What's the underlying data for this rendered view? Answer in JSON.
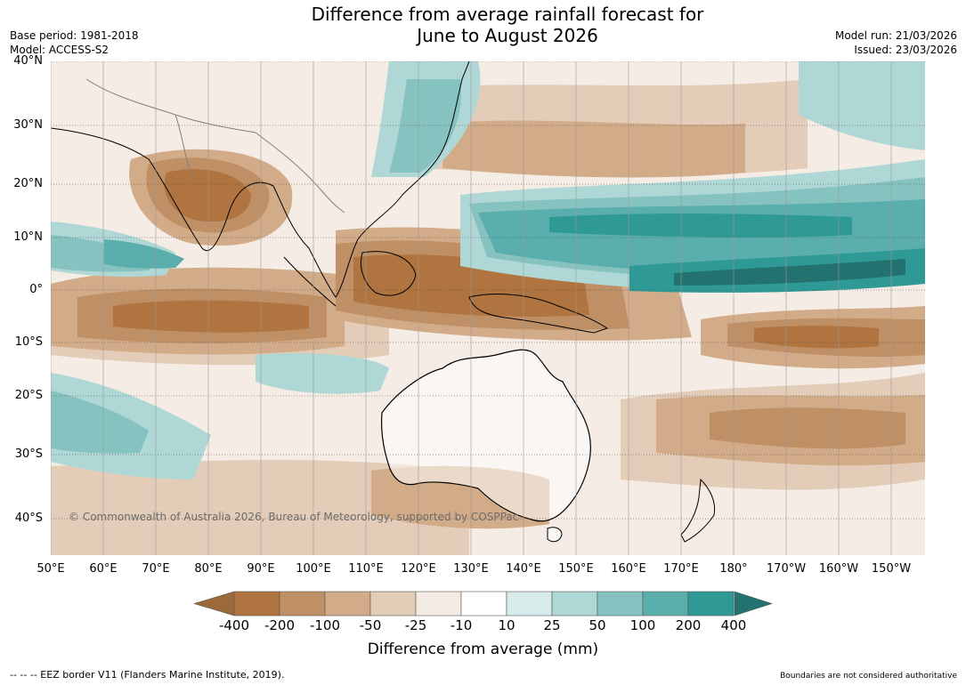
{
  "title": {
    "line1": "Difference from average rainfall forecast for",
    "line2": "June to August 2026"
  },
  "meta_left": {
    "base_period": "Base period: 1981-2018",
    "model": "Model: ACCESS-S2"
  },
  "meta_right": {
    "model_run": "Model run: 21/03/2026",
    "issued": "Issued: 23/03/2026"
  },
  "axes": {
    "lat_labels": [
      "40°N",
      "30°N",
      "20°N",
      "10°N",
      "0°",
      "10°S",
      "20°S",
      "30°S",
      "40°S"
    ],
    "lon_labels": [
      "50°E",
      "60°E",
      "70°E",
      "80°E",
      "90°E",
      "100°E",
      "110°E",
      "120°E",
      "130°E",
      "140°E",
      "150°E",
      "160°E",
      "170°E",
      "180°",
      "170°W",
      "160°W",
      "150°W"
    ]
  },
  "copyright": "© Commonwealth of Australia 2026, Bureau of Meteorology, supported by COSPPac",
  "colorbar": {
    "ticks": [
      "-400",
      "-200",
      "-100",
      "-50",
      "-25",
      "-10",
      "10",
      "25",
      "50",
      "100",
      "200",
      "400"
    ],
    "colors": [
      "#9c6a3a",
      "#b07440",
      "#bf8f65",
      "#d2ac88",
      "#e3cdb9",
      "#f3ebe4",
      "#ffffff",
      "#d7ebea",
      "#afd7d5",
      "#86c2c0",
      "#5aaeab",
      "#2f9996",
      "#23726f"
    ],
    "title": "Difference from average (mm)"
  },
  "footer": {
    "eez": "--  --  -- EEZ border V11 (Flanders Marine Institute, 2019).",
    "disclaimer": "Boundaries are not considered authoritative"
  }
}
